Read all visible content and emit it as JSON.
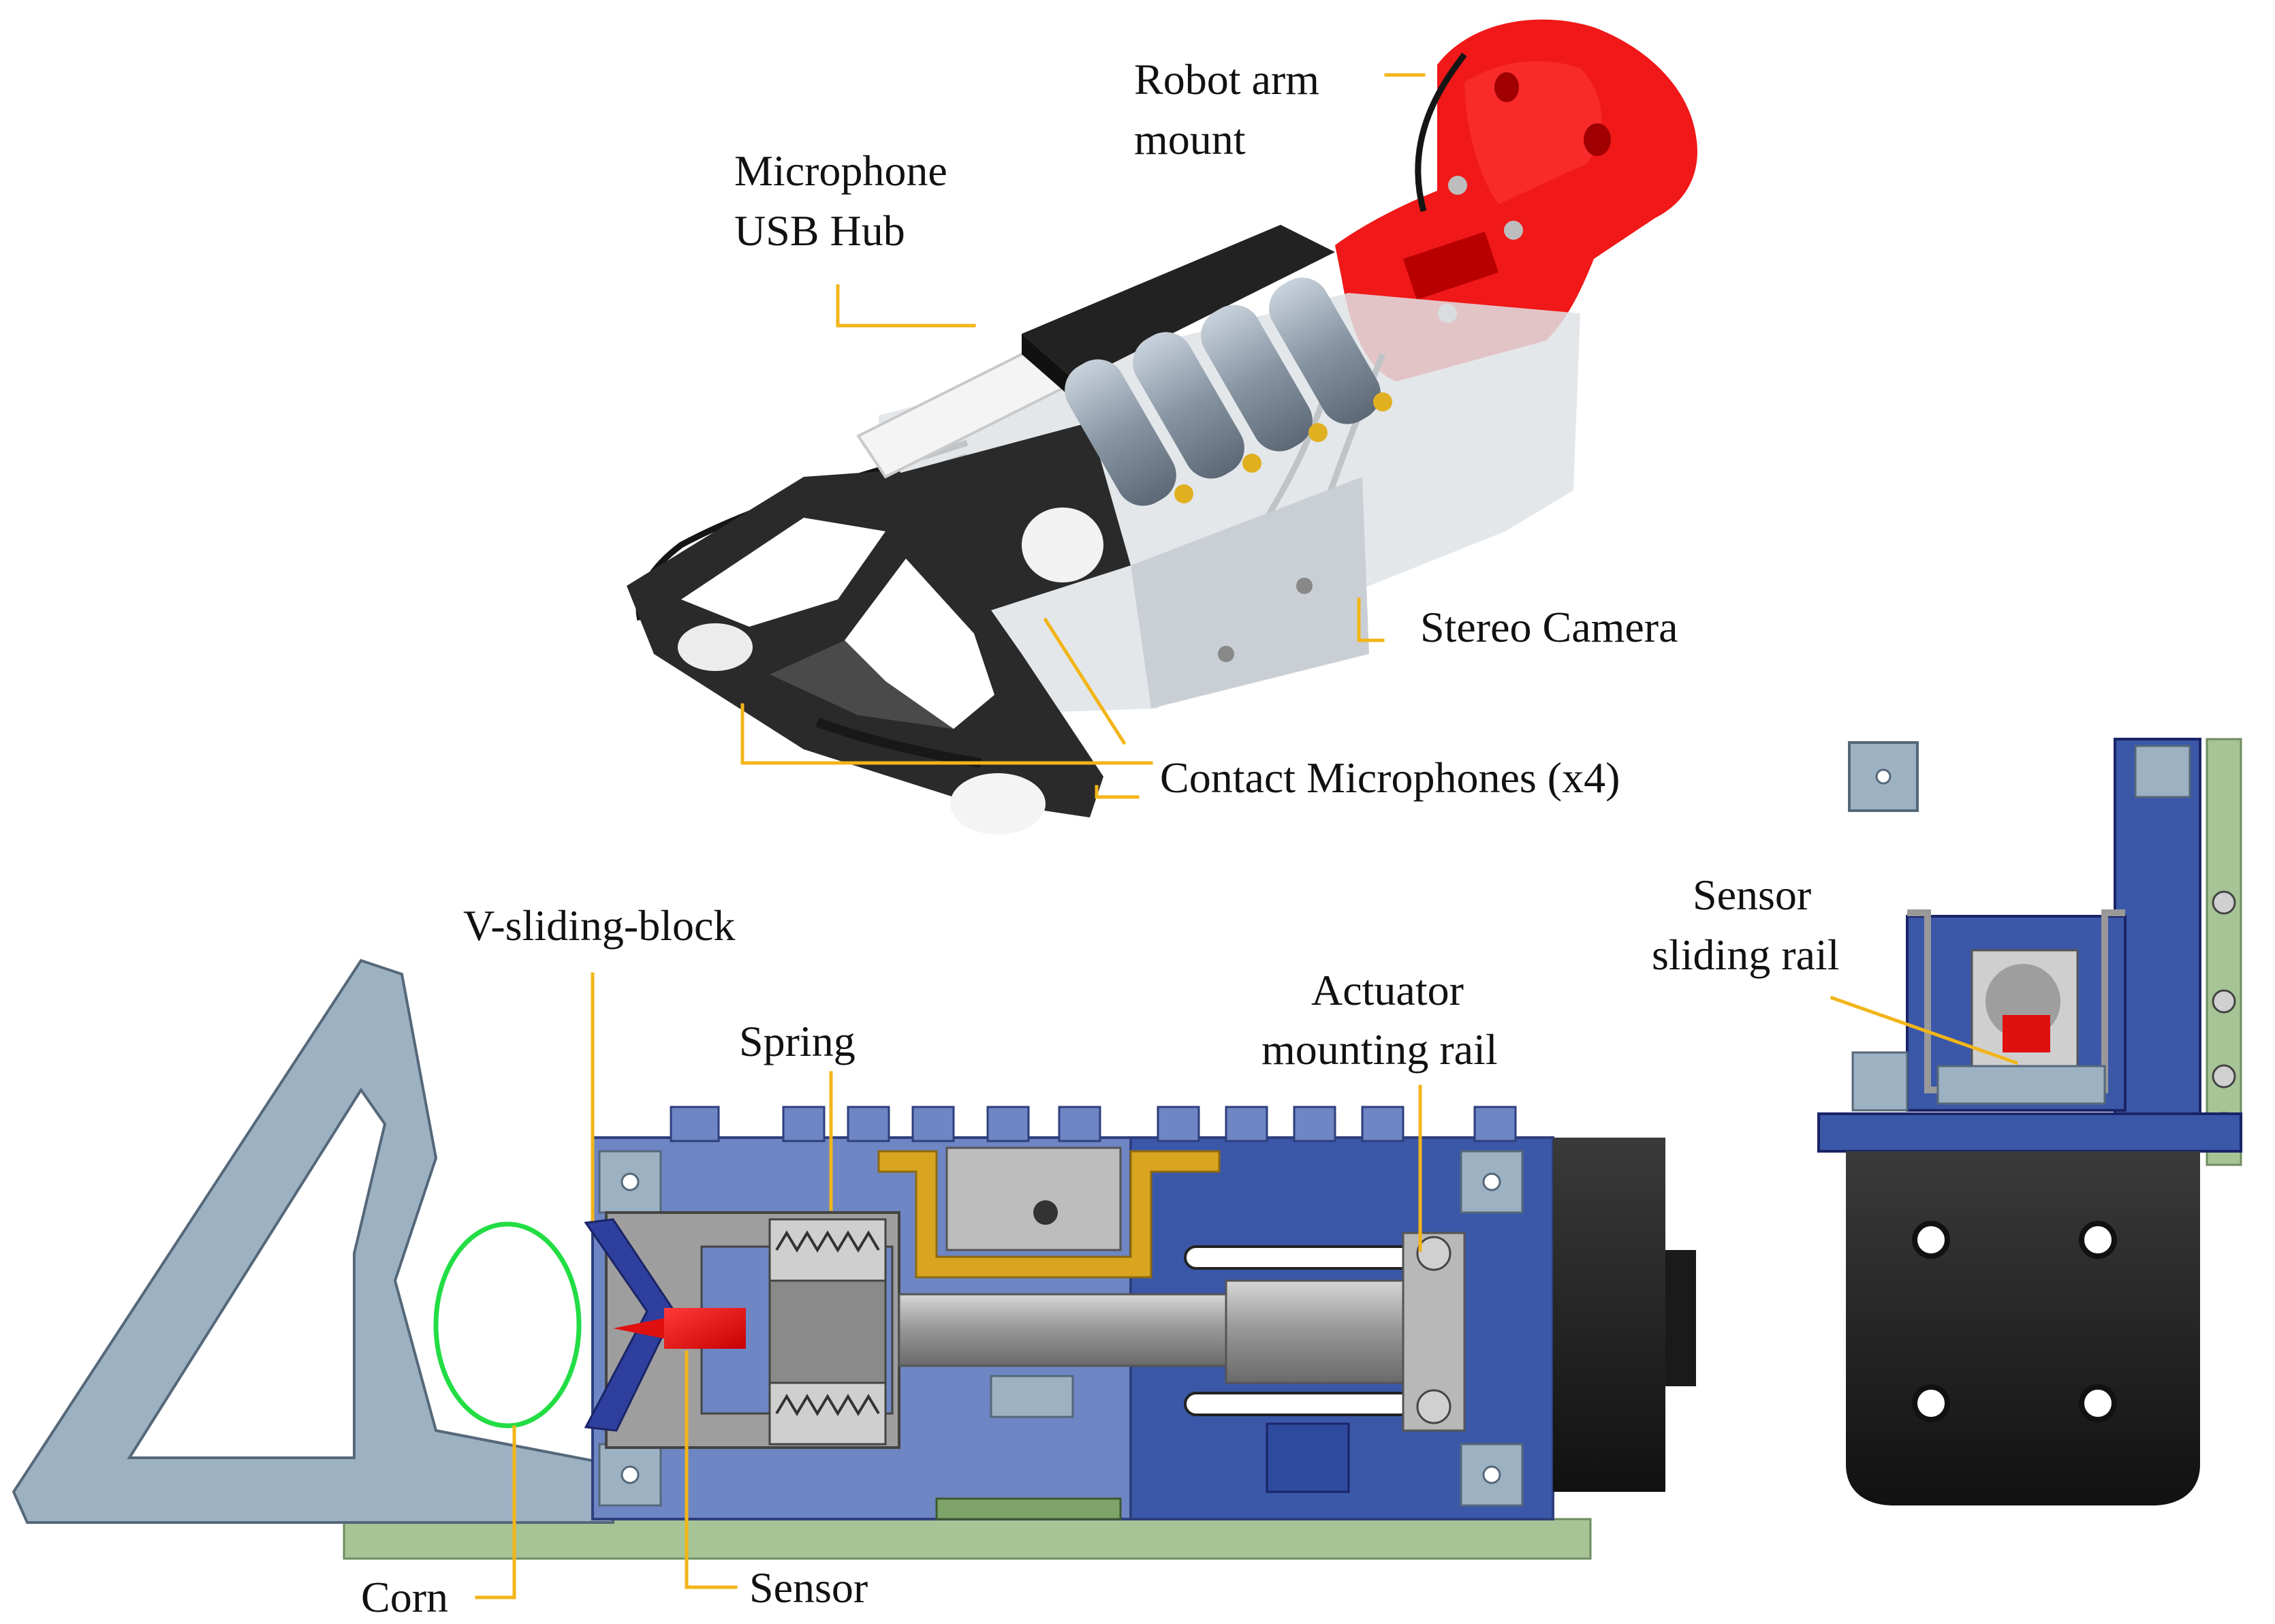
{
  "labels": {
    "robot_arm_mount": [
      "Robot arm",
      "mount"
    ],
    "microphone_usb_hub": [
      "Microphone",
      "USB Hub"
    ],
    "stereo_camera": "Stereo Camera",
    "contact_microphones": "Contact Microphones (x4)",
    "v_sliding_block": "V-sliding-block",
    "spring": "Spring",
    "actuator_mounting_rail": [
      "Actuator",
      "mounting rail"
    ],
    "sensor_sliding_rail": [
      "Sensor",
      "sliding rail"
    ],
    "corn": "Corn",
    "sensor": "Sensor"
  },
  "colors": {
    "leader": "#f2b519",
    "corn_outline": "#22dd44",
    "frame_grey_blue": "#9cb1c2",
    "housing_blue": "#3b57a8",
    "housing_blue_light": "#6e86c3",
    "pcb_green": "#a6c495",
    "gold_bracket": "#d9a520",
    "sensor_red": "#e01010",
    "mount_red": "#f01818",
    "black_part": "#222222",
    "metal_grey": "#9e9e9e"
  }
}
